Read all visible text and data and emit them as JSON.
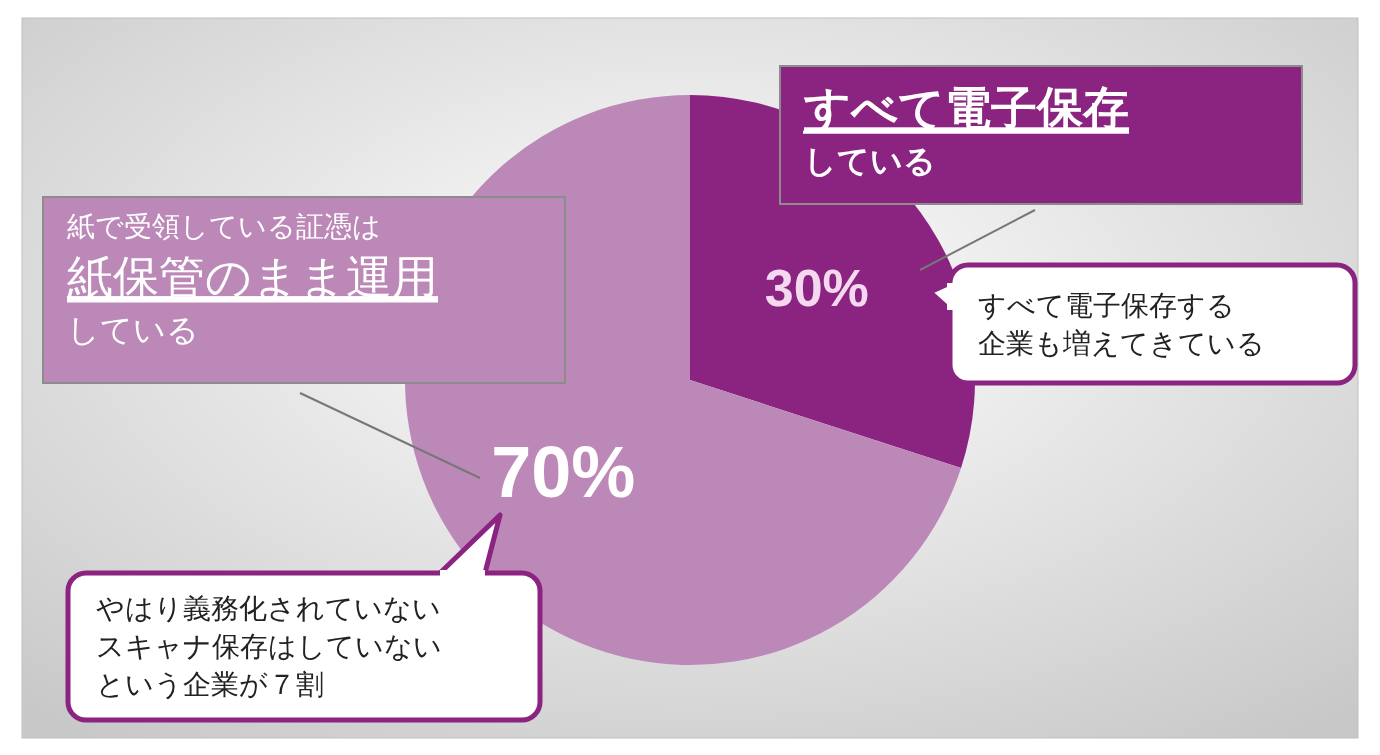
{
  "chart_data": {
    "type": "pie",
    "categories": [
      "**すべて電子保存**している",
      "紙で受領している証憑は**紙保管のまま運用**している"
    ],
    "values": [
      30,
      70
    ],
    "colors": [
      "#8b2381",
      "#bc88b8"
    ],
    "value_labels": [
      "30%",
      "70%"
    ],
    "annotations": [
      "すべて電子保存する企業も増えてきている",
      "やはり義務化されていないスキャナ保存はしていないという企業が７割"
    ]
  }
}
